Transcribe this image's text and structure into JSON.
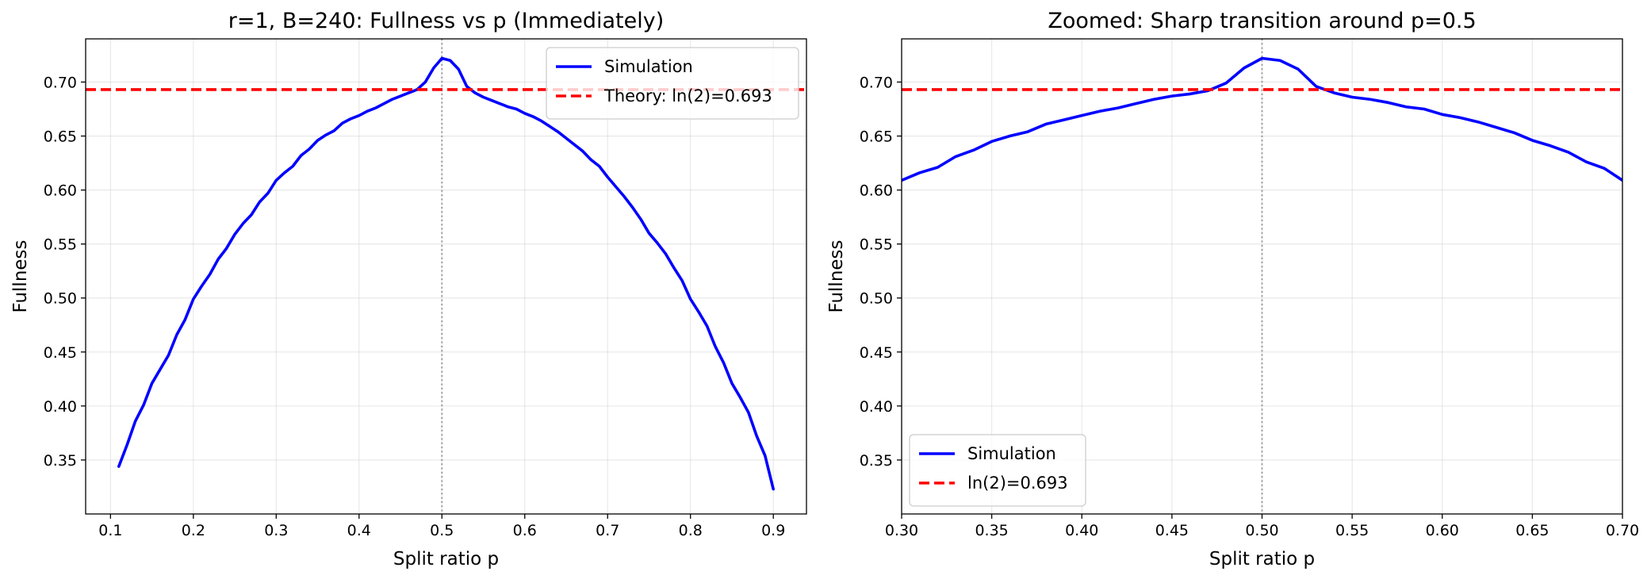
{
  "chart_data": [
    {
      "type": "line",
      "title": "r=1, B=240: Fullness vs p (Immediately)",
      "xlabel": "Split ratio p",
      "ylabel": "Fullness",
      "xlim": [
        0.07,
        0.94
      ],
      "ylim": [
        0.3,
        0.74
      ],
      "xticks": [
        0.1,
        0.2,
        0.3,
        0.4,
        0.5,
        0.6,
        0.7,
        0.8,
        0.9
      ],
      "xtick_labels": [
        "0.1",
        "0.2",
        "0.3",
        "0.4",
        "0.5",
        "0.6",
        "0.7",
        "0.8",
        "0.9"
      ],
      "yticks": [
        0.35,
        0.4,
        0.45,
        0.5,
        0.55,
        0.6,
        0.65,
        0.7
      ],
      "ytick_labels": [
        "0.35",
        "0.40",
        "0.45",
        "0.50",
        "0.55",
        "0.60",
        "0.65",
        "0.70"
      ],
      "grid": true,
      "legend_position": "upper right",
      "vline": {
        "x": 0.5,
        "style": "dotted",
        "color": "#999999"
      },
      "series": [
        {
          "name": "Simulation",
          "color": "#0000ff",
          "style": "solid",
          "x": [
            0.11,
            0.12,
            0.13,
            0.14,
            0.15,
            0.16,
            0.17,
            0.18,
            0.19,
            0.2,
            0.21,
            0.22,
            0.23,
            0.24,
            0.25,
            0.26,
            0.27,
            0.28,
            0.29,
            0.3,
            0.31,
            0.32,
            0.33,
            0.34,
            0.35,
            0.36,
            0.37,
            0.38,
            0.39,
            0.4,
            0.41,
            0.42,
            0.43,
            0.44,
            0.45,
            0.46,
            0.47,
            0.48,
            0.49,
            0.5,
            0.51,
            0.52,
            0.53,
            0.54,
            0.55,
            0.56,
            0.57,
            0.58,
            0.59,
            0.6,
            0.61,
            0.62,
            0.63,
            0.64,
            0.65,
            0.66,
            0.67,
            0.68,
            0.69,
            0.7,
            0.71,
            0.72,
            0.73,
            0.74,
            0.75,
            0.76,
            0.77,
            0.78,
            0.79,
            0.8,
            0.81,
            0.82,
            0.83,
            0.84,
            0.85,
            0.86,
            0.87,
            0.88,
            0.89,
            0.9
          ],
          "y": [
            0.344,
            0.364,
            0.386,
            0.401,
            0.421,
            0.434,
            0.447,
            0.466,
            0.48,
            0.499,
            0.511,
            0.522,
            0.536,
            0.546,
            0.559,
            0.569,
            0.577,
            0.589,
            0.597,
            0.609,
            0.616,
            0.622,
            0.632,
            0.638,
            0.646,
            0.651,
            0.655,
            0.662,
            0.666,
            0.669,
            0.673,
            0.676,
            0.68,
            0.684,
            0.687,
            0.69,
            0.693,
            0.7,
            0.713,
            0.722,
            0.72,
            0.712,
            0.696,
            0.69,
            0.686,
            0.683,
            0.68,
            0.677,
            0.675,
            0.671,
            0.668,
            0.664,
            0.659,
            0.654,
            0.648,
            0.642,
            0.636,
            0.628,
            0.622,
            0.612,
            0.603,
            0.594,
            0.584,
            0.573,
            0.56,
            0.551,
            0.541,
            0.528,
            0.516,
            0.499,
            0.487,
            0.474,
            0.455,
            0.44,
            0.421,
            0.408,
            0.394,
            0.372,
            0.354,
            0.323
          ]
        },
        {
          "name": "Theory: ln(2)=0.693",
          "color": "#ff0000",
          "style": "dashed",
          "hline": 0.693
        }
      ]
    },
    {
      "type": "line",
      "title": "Zoomed: Sharp transition around p=0.5",
      "xlabel": "Split ratio p",
      "ylabel": "Fullness",
      "xlim": [
        0.3,
        0.7
      ],
      "ylim": [
        0.3,
        0.74
      ],
      "xticks": [
        0.3,
        0.35,
        0.4,
        0.45,
        0.5,
        0.55,
        0.6,
        0.65,
        0.7
      ],
      "xtick_labels": [
        "0.30",
        "0.35",
        "0.40",
        "0.45",
        "0.50",
        "0.55",
        "0.60",
        "0.65",
        "0.70"
      ],
      "yticks": [
        0.35,
        0.4,
        0.45,
        0.5,
        0.55,
        0.6,
        0.65,
        0.7
      ],
      "ytick_labels": [
        "0.35",
        "0.40",
        "0.45",
        "0.50",
        "0.55",
        "0.60",
        "0.65",
        "0.70"
      ],
      "grid": true,
      "legend_position": "lower left",
      "vline": {
        "x": 0.5,
        "style": "dotted",
        "color": "#999999"
      },
      "series": [
        {
          "name": "Simulation",
          "color": "#0000ff",
          "style": "solid",
          "x": [
            0.3,
            0.31,
            0.32,
            0.33,
            0.34,
            0.35,
            0.36,
            0.37,
            0.38,
            0.39,
            0.4,
            0.41,
            0.42,
            0.43,
            0.44,
            0.45,
            0.46,
            0.47,
            0.48,
            0.49,
            0.5,
            0.51,
            0.52,
            0.53,
            0.54,
            0.55,
            0.56,
            0.57,
            0.58,
            0.59,
            0.6,
            0.61,
            0.62,
            0.63,
            0.64,
            0.65,
            0.66,
            0.67,
            0.68,
            0.69,
            0.7
          ],
          "y": [
            0.609,
            0.616,
            0.621,
            0.631,
            0.637,
            0.645,
            0.65,
            0.654,
            0.661,
            0.665,
            0.669,
            0.673,
            0.676,
            0.68,
            0.684,
            0.687,
            0.689,
            0.692,
            0.699,
            0.713,
            0.722,
            0.72,
            0.712,
            0.696,
            0.69,
            0.686,
            0.684,
            0.681,
            0.677,
            0.675,
            0.67,
            0.667,
            0.663,
            0.658,
            0.653,
            0.646,
            0.641,
            0.635,
            0.626,
            0.62,
            0.609
          ]
        },
        {
          "name": "ln(2)=0.693",
          "color": "#ff0000",
          "style": "dashed",
          "hline": 0.693
        }
      ]
    }
  ]
}
